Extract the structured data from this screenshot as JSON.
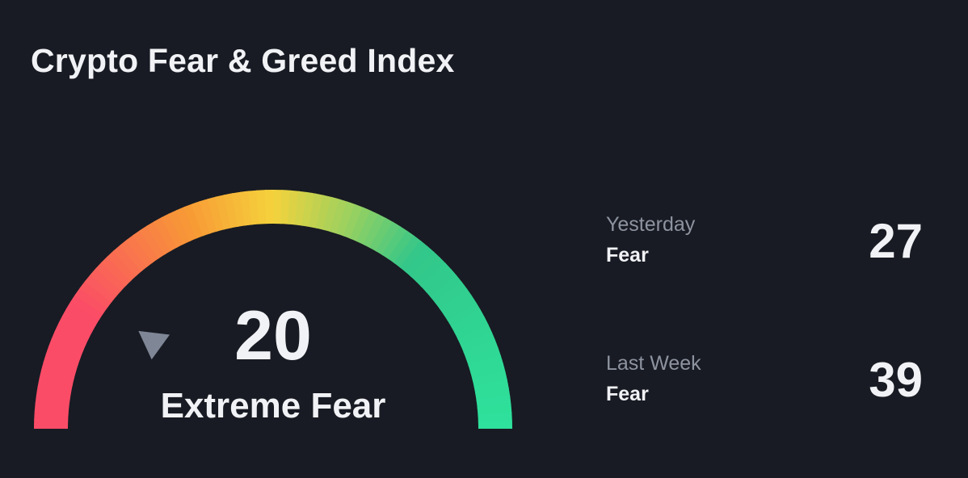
{
  "header": {
    "title": "Crypto Fear & Greed Index"
  },
  "gauge": {
    "value": 20,
    "classification": "Extreme Fear",
    "scale_min": 0,
    "scale_max": 100,
    "colors": {
      "extreme_fear": "#fb4c67",
      "fear": "#f79a35",
      "neutral": "#f5d23c",
      "greed": "#32c78a",
      "extreme_greed": "#2ee29c",
      "pointer": "#7f8796"
    }
  },
  "history": [
    {
      "period": "Yesterday",
      "label": "Fear",
      "value": "27"
    },
    {
      "period": "Last Week",
      "label": "Fear",
      "value": "39"
    }
  ],
  "theme": {
    "background": "#181b23",
    "text": "#f1f2f5",
    "muted_text": "#8d939f"
  }
}
